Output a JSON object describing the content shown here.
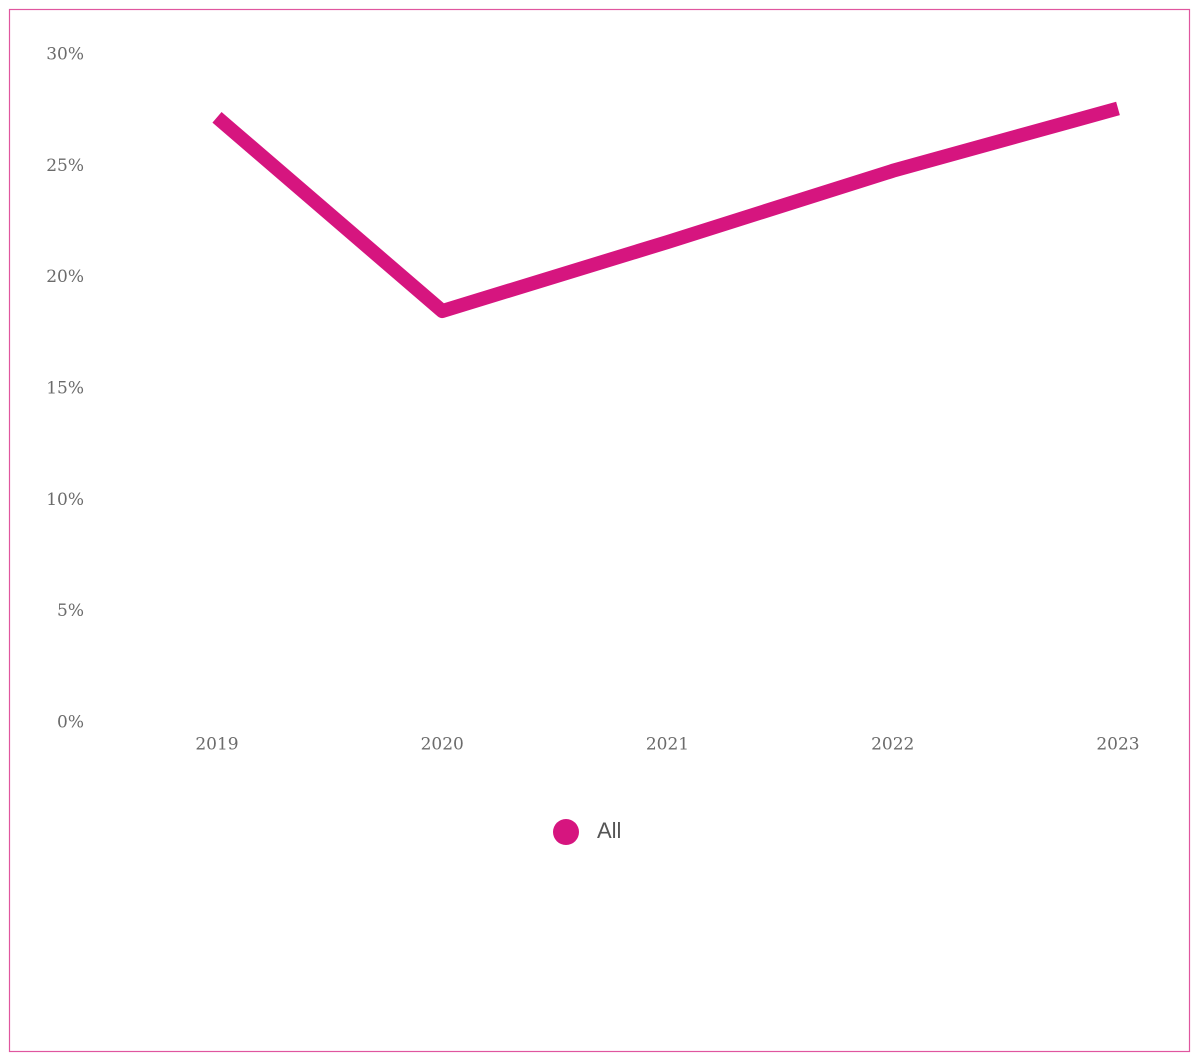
{
  "chart_data": {
    "type": "line",
    "categories": [
      "2019",
      "2020",
      "2021",
      "2022",
      "2023"
    ],
    "series": [
      {
        "name": "All",
        "color": "#d6157f",
        "values": [
          27.2,
          18.5,
          21.6,
          24.8,
          27.6
        ]
      }
    ],
    "ylim": [
      0,
      30
    ],
    "yticks": [
      {
        "value": 0,
        "label": "0%"
      },
      {
        "value": 5,
        "label": "5%"
      },
      {
        "value": 10,
        "label": "10%"
      },
      {
        "value": 15,
        "label": "15%"
      },
      {
        "value": 20,
        "label": "20%"
      },
      {
        "value": 25,
        "label": "25%"
      },
      {
        "value": 30,
        "label": "30%"
      }
    ],
    "grid": false,
    "legend": "bottom"
  }
}
